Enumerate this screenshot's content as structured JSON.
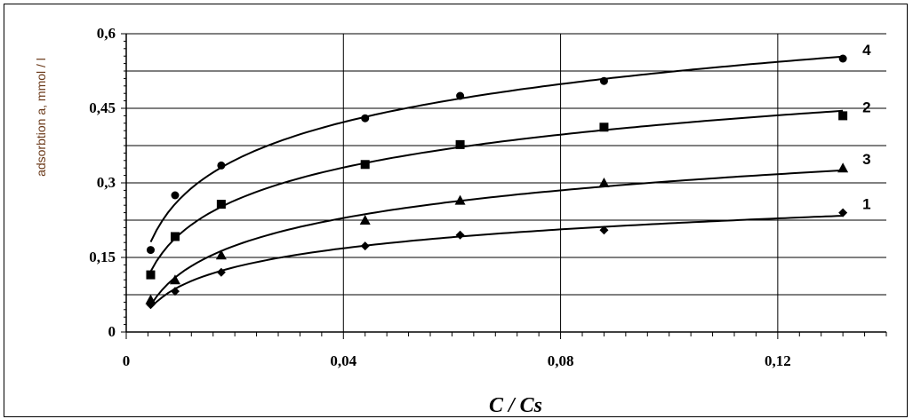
{
  "chart_data": {
    "type": "line",
    "title": "",
    "xlabel": "C / Cs",
    "ylabel": "adsorbtion a, mmol / l",
    "xlim": [
      0,
      0.14
    ],
    "ylim": [
      0,
      0.6
    ],
    "x_ticks": [
      0,
      0.04,
      0.08,
      0.12
    ],
    "x_tick_labels": [
      "0",
      "0,04",
      "0,08",
      "0,12"
    ],
    "y_ticks": [
      0,
      0.15,
      0.3,
      0.45,
      0.6
    ],
    "y_tick_labels": [
      "0",
      "0,15",
      "0,3",
      "0,45",
      "0,6"
    ],
    "grid": true,
    "series": [
      {
        "name": "4",
        "marker": "circle",
        "x": [
          0.0045,
          0.009,
          0.0175,
          0.044,
          0.0615,
          0.088,
          0.132
        ],
        "y": [
          0.165,
          0.275,
          0.335,
          0.43,
          0.475,
          0.505,
          0.55
        ]
      },
      {
        "name": "2",
        "marker": "square",
        "x": [
          0.0045,
          0.009,
          0.0175,
          0.044,
          0.0615,
          0.088,
          0.132
        ],
        "y": [
          0.115,
          0.192,
          0.257,
          0.337,
          0.377,
          0.412,
          0.435
        ]
      },
      {
        "name": "3",
        "marker": "triangle",
        "x": [
          0.0045,
          0.009,
          0.0175,
          0.044,
          0.0615,
          0.088,
          0.132
        ],
        "y": [
          0.065,
          0.105,
          0.155,
          0.225,
          0.265,
          0.3,
          0.33
        ]
      },
      {
        "name": "1",
        "marker": "diamond",
        "x": [
          0.0045,
          0.009,
          0.0175,
          0.044,
          0.0615,
          0.088,
          0.132
        ],
        "y": [
          0.055,
          0.082,
          0.12,
          0.173,
          0.195,
          0.205,
          0.24
        ]
      }
    ]
  }
}
